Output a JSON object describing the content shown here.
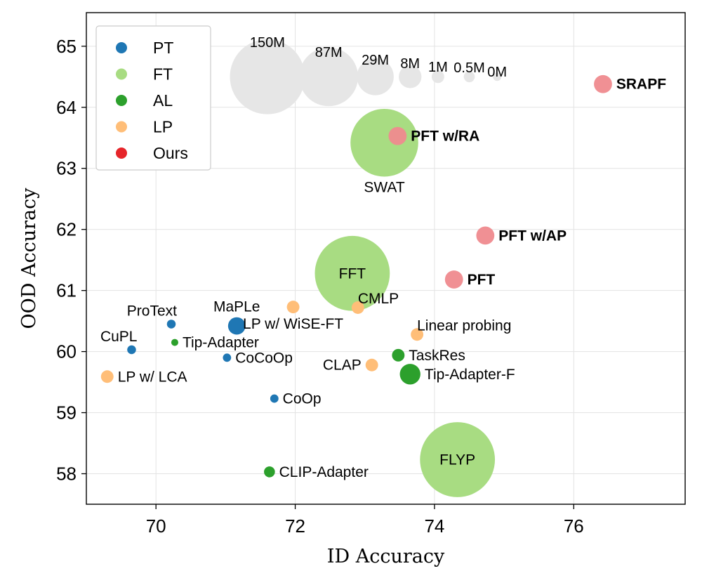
{
  "chart_data": {
    "type": "scatter",
    "xlabel": "ID Accuracy",
    "ylabel": "OOD Accuracy",
    "xlim": [
      69.0,
      77.6
    ],
    "ylim": [
      57.5,
      65.55
    ],
    "xticks": [
      70,
      72,
      74,
      76
    ],
    "yticks": [
      58,
      59,
      60,
      61,
      62,
      63,
      64,
      65
    ],
    "grid": true,
    "legend": {
      "position": "top-left",
      "entries": [
        {
          "label": "PT",
          "color": "#1f77b4"
        },
        {
          "label": "FT",
          "color": "#a8dc82"
        },
        {
          "label": "AL",
          "color": "#2ca02c"
        },
        {
          "label": "LP",
          "color": "#ffbe78"
        },
        {
          "label": "Ours",
          "color": "#e6252a"
        }
      ]
    },
    "colors": {
      "PT": "#1f77b4",
      "FT": "#a8dc82",
      "AL": "#2ca02c",
      "LP": "#ffbe78",
      "Ours": "#ef8a8e",
      "size_ref": "#e6e6e6"
    },
    "size_reference": [
      {
        "label": "150M",
        "params": 150,
        "x": 71.6,
        "y": 64.5
      },
      {
        "label": "87M",
        "params": 87,
        "x": 72.48,
        "y": 64.5
      },
      {
        "label": "29M",
        "params": 29,
        "x": 73.15,
        "y": 64.5
      },
      {
        "label": "8M",
        "params": 8,
        "x": 73.65,
        "y": 64.5
      },
      {
        "label": "1M",
        "params": 1,
        "x": 74.05,
        "y": 64.5
      },
      {
        "label": "0.5M",
        "params": 0.5,
        "x": 74.5,
        "y": 64.5
      },
      {
        "label": "0M",
        "params": 0,
        "x": 74.9,
        "y": 64.5
      }
    ],
    "points": [
      {
        "name": "ProText",
        "group": "PT",
        "x": 70.22,
        "y": 60.45,
        "params": 0.1,
        "label": "ProText",
        "label_pos": "above-left"
      },
      {
        "name": "CuPL",
        "group": "PT",
        "x": 69.65,
        "y": 60.03,
        "params": 0.1,
        "label": "CuPL",
        "label_pos": "above-left"
      },
      {
        "name": "MaPLe",
        "group": "PT",
        "x": 71.16,
        "y": 60.42,
        "params": 3.5,
        "label": "MaPLe",
        "label_pos": "above"
      },
      {
        "name": "CoCoOp",
        "group": "PT",
        "x": 71.02,
        "y": 59.9,
        "params": 0.05,
        "label": "CoCoOp",
        "label_pos": "right"
      },
      {
        "name": "CoOp",
        "group": "PT",
        "x": 71.7,
        "y": 59.23,
        "params": 0.05,
        "label": "CoOp",
        "label_pos": "right"
      },
      {
        "name": "FFT",
        "group": "FT",
        "x": 72.82,
        "y": 61.28,
        "params": 150,
        "label": "FFT",
        "label_pos": "center"
      },
      {
        "name": "SWAT",
        "group": "FT",
        "x": 73.28,
        "y": 63.42,
        "params": 120,
        "label": "SWAT",
        "label_pos": "below"
      },
      {
        "name": "FLYP",
        "group": "FT",
        "x": 74.33,
        "y": 58.23,
        "params": 150,
        "label": "FLYP",
        "label_pos": "center"
      },
      {
        "name": "Tip-Adapter",
        "group": "AL",
        "x": 70.27,
        "y": 60.15,
        "params": 0,
        "label": "Tip-Adapter",
        "label_pos": "right"
      },
      {
        "name": "TaskRes",
        "group": "AL",
        "x": 73.48,
        "y": 59.94,
        "params": 1,
        "label": "TaskRes",
        "label_pos": "right"
      },
      {
        "name": "Tip-Adapter-F",
        "group": "AL",
        "x": 73.65,
        "y": 59.63,
        "params": 6,
        "label": "Tip-Adapter-F",
        "label_pos": "right"
      },
      {
        "name": "CLIP-Adapter",
        "group": "AL",
        "x": 71.63,
        "y": 58.03,
        "params": 0.5,
        "label": "CLIP-Adapter",
        "label_pos": "right"
      },
      {
        "name": "LP w/ WiSE-FT",
        "group": "LP",
        "x": 71.97,
        "y": 60.73,
        "params": 1,
        "label": "LP w/  WiSE-FT",
        "label_pos": "below-right"
      },
      {
        "name": "CMLP",
        "group": "LP",
        "x": 72.9,
        "y": 60.72,
        "params": 1,
        "label": "CMLP",
        "label_pos": "above-right"
      },
      {
        "name": "Linear probing",
        "group": "LP",
        "x": 73.75,
        "y": 60.28,
        "params": 1,
        "label": "Linear probing",
        "label_pos": "above-right"
      },
      {
        "name": "CLAP",
        "group": "LP",
        "x": 73.1,
        "y": 59.78,
        "params": 1,
        "label": "CLAP",
        "label_pos": "left"
      },
      {
        "name": "LP w/ LCA",
        "group": "LP",
        "x": 69.3,
        "y": 59.59,
        "params": 1,
        "label": "LP w/  LCA",
        "label_pos": "right"
      },
      {
        "name": "SRAPF",
        "group": "Ours",
        "x": 76.42,
        "y": 64.38,
        "params": 4,
        "label": "SRAPF",
        "label_pos": "right",
        "bold": true
      },
      {
        "name": "PFT w/RA",
        "group": "Ours",
        "x": 73.47,
        "y": 63.53,
        "params": 4,
        "label": "PFT w/RA",
        "label_pos": "right",
        "bold": true
      },
      {
        "name": "PFT w/AP",
        "group": "Ours",
        "x": 74.73,
        "y": 61.9,
        "params": 4,
        "label": "PFT w/AP",
        "label_pos": "right",
        "bold": true
      },
      {
        "name": "PFT",
        "group": "Ours",
        "x": 74.28,
        "y": 61.18,
        "params": 4,
        "label": "PFT",
        "label_pos": "right",
        "bold": true
      }
    ]
  }
}
